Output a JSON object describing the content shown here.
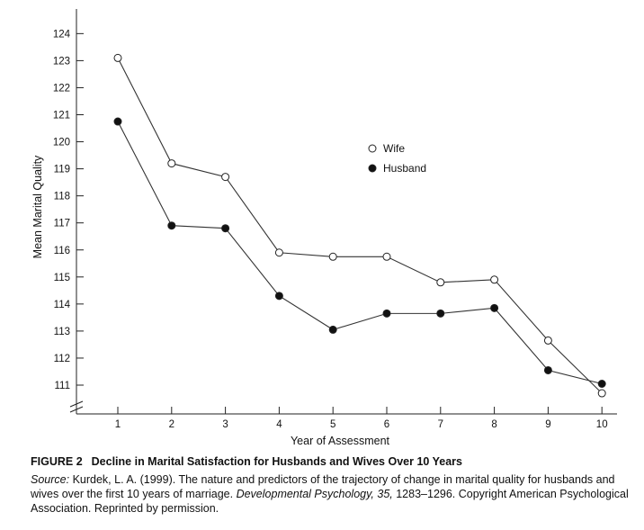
{
  "chart_data": {
    "type": "line",
    "xlabel": "Year of Assessment",
    "ylabel": "Mean Marital Quality",
    "x": [
      1,
      2,
      3,
      4,
      5,
      6,
      7,
      8,
      9,
      10
    ],
    "xlim": [
      1,
      10
    ],
    "ylim": [
      111,
      124
    ],
    "yticks": [
      111,
      112,
      113,
      114,
      115,
      116,
      117,
      118,
      119,
      120,
      121,
      122,
      123,
      124
    ],
    "axis_break": "y",
    "grid": false,
    "legend_position": "upper-middle-right",
    "series": [
      {
        "name": "Wife",
        "marker": "open-circle",
        "values": [
          123.1,
          119.2,
          118.7,
          115.9,
          115.75,
          115.75,
          114.8,
          114.9,
          112.65,
          110.7
        ]
      },
      {
        "name": "Husband",
        "marker": "filled-circle",
        "values": [
          120.75,
          116.9,
          116.8,
          114.3,
          113.05,
          113.65,
          113.65,
          113.85,
          111.55,
          111.05
        ]
      }
    ],
    "colors": {
      "line": "#333333",
      "marker_stroke": "#222222",
      "open_fill": "#ffffff",
      "filled_fill": "#111111"
    }
  },
  "caption": {
    "figure_number": "FIGURE 2",
    "figure_title": "Decline in Marital Satisfaction for Husbands and Wives Over 10 Years",
    "source_label": "Source:",
    "source_before_journal": "Kurdek, L. A. (1999). The nature and predictors of the trajectory of change in marital quality for husbands and wives over the first 10 years of marriage.",
    "journal": "Developmental Psychology, 35,",
    "source_after_journal": "1283–1296. Copyright American Psychological Association. Reprinted by permission."
  }
}
